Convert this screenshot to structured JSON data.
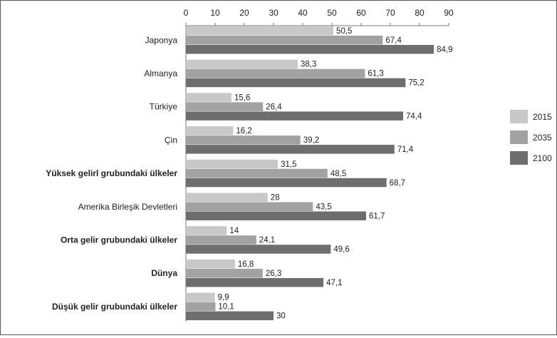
{
  "chart_data": {
    "type": "bar",
    "orientation": "horizontal",
    "categories": [
      "Japonya",
      "Almanya",
      "Türkiye",
      "Çin",
      "Yüksek gelirl grubundaki ülkeler",
      "Amerika Birleşik Devletleri",
      "Orta gelir grubundaki ülkeler",
      "Dünya",
      "Düşük gelir grubundaki ülkeler"
    ],
    "bold_categories": [
      "Yüksek gelirl grubundaki ülkeler",
      "Orta gelir grubundaki ülkeler",
      "Dünya",
      "Düşük gelir grubundaki ülkeler"
    ],
    "series": [
      {
        "name": "2015",
        "color": "#c8c8c8",
        "values": [
          50.5,
          38.3,
          15.6,
          16.2,
          31.5,
          28,
          14,
          16.8,
          9.9
        ]
      },
      {
        "name": "2035",
        "color": "#a2a2a2",
        "values": [
          67.4,
          61.3,
          26.4,
          39.2,
          48.5,
          43.5,
          24.1,
          26.3,
          10.1
        ]
      },
      {
        "name": "2100",
        "color": "#6e6e6e",
        "values": [
          84.9,
          75.2,
          74.4,
          71.4,
          68.7,
          61.7,
          49.6,
          47.1,
          30
        ]
      }
    ],
    "data_labels": [
      [
        "50,5",
        "38,3",
        "15,6",
        "16,2",
        "31,5",
        "28",
        "14",
        "16,8",
        "9,9"
      ],
      [
        "67,4",
        "61,3",
        "26,4",
        "39,2",
        "48,5",
        "43,5",
        "24,1",
        "26,3",
        "10,1"
      ],
      [
        "84,9",
        "75,2",
        "74,4",
        "71,4",
        "68,7",
        "61,7",
        "49,6",
        "47,1",
        "30"
      ]
    ],
    "xticks": [
      "0",
      "10",
      "20",
      "30",
      "40",
      "50",
      "60",
      "70",
      "80",
      "90"
    ],
    "xlim": [
      0,
      90
    ],
    "axis_position": "top",
    "grid": false,
    "legend_position": "right",
    "title": "",
    "xlabel": "",
    "ylabel": ""
  }
}
